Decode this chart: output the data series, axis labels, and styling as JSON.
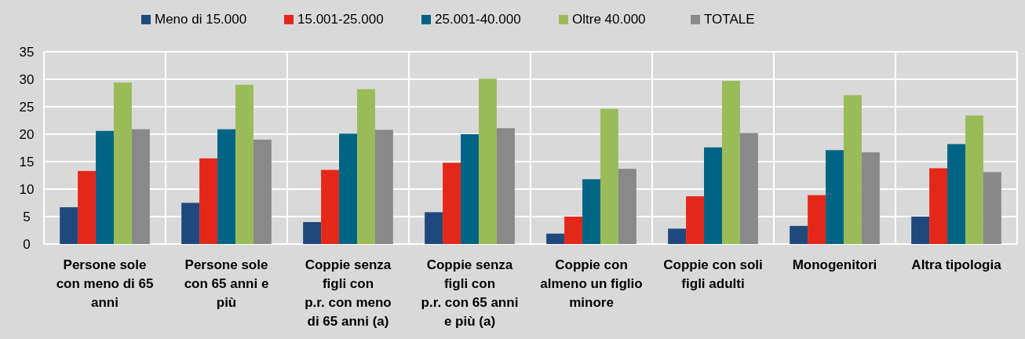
{
  "chart_data": {
    "type": "bar",
    "categories": [
      "Persone sole\ncon meno di 65\nanni",
      "Persone sole\ncon 65 anni e\npiù",
      "Coppie senza\nfigli con\np.r. con meno\ndi 65 anni (a)",
      "Coppie senza\nfigli con\np.r. con 65 anni\ne più (a)",
      "Coppie con\nalmeno un figlio\nminore",
      "Coppie con soli\nfigli adulti",
      "Monogenitori",
      "Altra tipologia"
    ],
    "series": [
      {
        "name": "Meno di 15.000",
        "color": "#1f497d",
        "values": [
          6.7,
          7.5,
          4.0,
          5.8,
          1.9,
          2.8,
          3.3,
          5.0
        ]
      },
      {
        "name": "15.001-25.000",
        "color": "#e3281a",
        "values": [
          13.3,
          15.6,
          13.5,
          14.8,
          5.0,
          8.7,
          8.9,
          13.8
        ]
      },
      {
        "name": "25.001-40.000",
        "color": "#006584",
        "values": [
          20.6,
          20.9,
          20.1,
          20.0,
          11.8,
          17.6,
          17.1,
          18.2
        ]
      },
      {
        "name": "Oltre 40.000",
        "color": "#9bbb59",
        "values": [
          29.4,
          29.0,
          28.2,
          30.1,
          24.6,
          29.7,
          27.1,
          23.4
        ]
      },
      {
        "name": "TOTALE",
        "color": "#898989",
        "values": [
          20.9,
          19.0,
          20.8,
          21.1,
          13.7,
          20.2,
          16.7,
          13.1
        ]
      }
    ],
    "ylim": [
      0,
      35
    ],
    "yticks": [
      0,
      5,
      10,
      15,
      20,
      25,
      30,
      35
    ],
    "grid": true,
    "legend": "top"
  }
}
